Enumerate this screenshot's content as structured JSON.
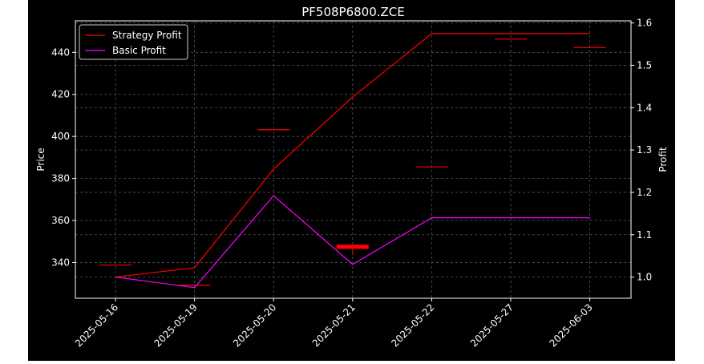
{
  "chart_data": {
    "type": "line",
    "title": "PF508P6800.ZCE",
    "xlabel": "",
    "ylabel": "Price",
    "y2label": "Profit",
    "categories": [
      "2025-05-16",
      "2025-05-19",
      "2025-05-20",
      "2025-05-21",
      "2025-05-22",
      "2025-05-27",
      "2025-06-03"
    ],
    "ylim": [
      323,
      455
    ],
    "y2lim": [
      0.95,
      1.605
    ],
    "yticks": [
      340,
      360,
      380,
      400,
      420,
      440
    ],
    "y2ticks": [
      1.0,
      1.1,
      1.2,
      1.3,
      1.4,
      1.5,
      1.6
    ],
    "grid": true,
    "legend": "top-left",
    "candles": [
      {
        "date": "2025-05-16",
        "open": 338.8,
        "close": 338.8,
        "high": 338.8,
        "low": 338.8
      },
      {
        "date": "2025-05-19",
        "open": 329.2,
        "close": 329.2,
        "high": 329.2,
        "low": 329.2
      },
      {
        "date": "2025-05-20",
        "open": 403.2,
        "close": 403.2,
        "high": 403.2,
        "low": 403.2
      },
      {
        "date": "2025-05-21",
        "open": 348.5,
        "close": 346.5,
        "high": 348.5,
        "low": 343.5
      },
      {
        "date": "2025-05-22",
        "open": 385.5,
        "close": 385.5,
        "high": 385.5,
        "low": 385.5
      },
      {
        "date": "2025-05-27",
        "open": 446.3,
        "close": 446.3,
        "high": 446.3,
        "low": 446.3
      },
      {
        "date": "2025-06-03",
        "open": 442.3,
        "close": 442.3,
        "high": 442.3,
        "low": 442.3
      }
    ],
    "series": [
      {
        "name": "Strategy Profit",
        "axis": "right",
        "color": "#ff0000",
        "values": [
          1.0,
          1.022,
          1.255,
          1.425,
          1.575,
          1.575,
          1.575
        ]
      },
      {
        "name": "Basic Profit",
        "axis": "right",
        "color": "#ff00ff",
        "values": [
          1.0,
          0.975,
          1.192,
          1.03,
          1.14,
          1.14,
          1.14
        ]
      }
    ],
    "colors": {
      "background": "#000000",
      "text": "#ffffff",
      "grid": "#555555",
      "candle": "#ff0000"
    }
  }
}
